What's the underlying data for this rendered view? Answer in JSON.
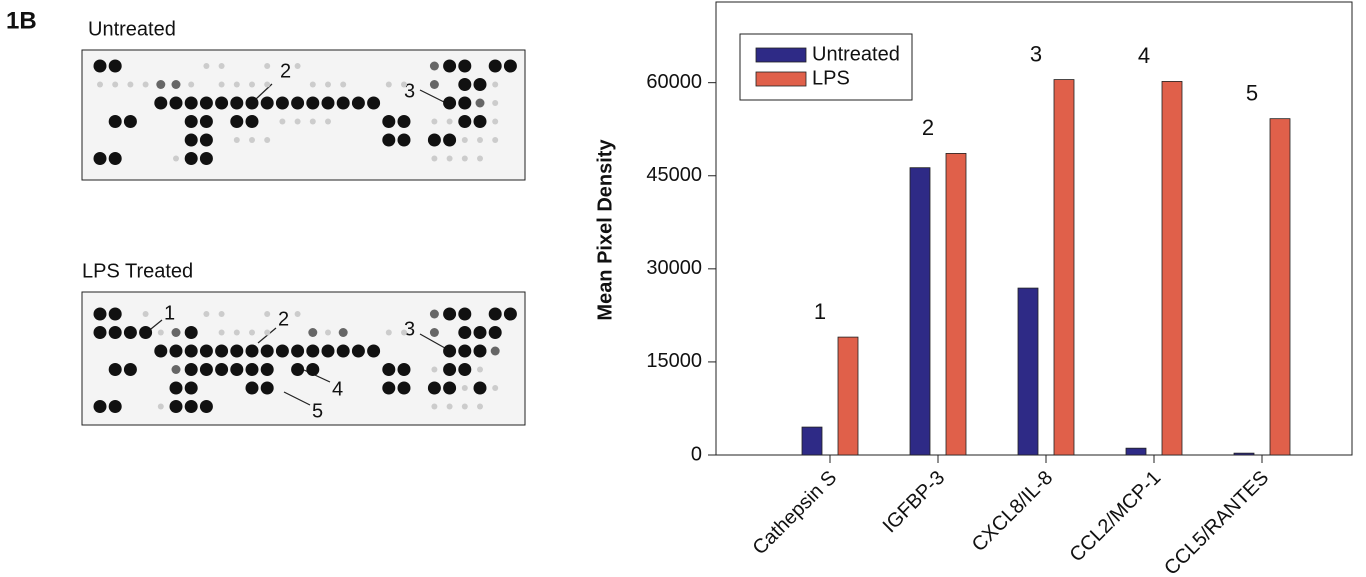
{
  "figure_label": "1B",
  "blots": [
    {
      "title": "Untreated",
      "labels": [
        "2",
        "3"
      ]
    },
    {
      "title": "LPS Treated",
      "labels": [
        "1",
        "2",
        "3",
        "4",
        "5"
      ]
    }
  ],
  "chart_data": {
    "type": "bar",
    "ylabel": "Mean Pixel Density",
    "categories": [
      "Cathepsin S",
      "IGFBP-3",
      "CXCL8/IL-8",
      "CCL2/MCP-1",
      "CCL5/RANTES"
    ],
    "series": [
      {
        "name": "Untreated",
        "color": "#2e2a86",
        "values": [
          4500,
          46300,
          26900,
          1100,
          300
        ]
      },
      {
        "name": "LPS",
        "color": "#e0604a",
        "values": [
          19000,
          48600,
          60500,
          60200,
          54200
        ]
      }
    ],
    "annotations": [
      "1",
      "2",
      "3",
      "4",
      "5"
    ],
    "ylim": [
      0,
      73000
    ],
    "yticks": [
      0,
      15000,
      30000,
      45000,
      60000
    ],
    "legend": "upper left",
    "grid": false
  }
}
